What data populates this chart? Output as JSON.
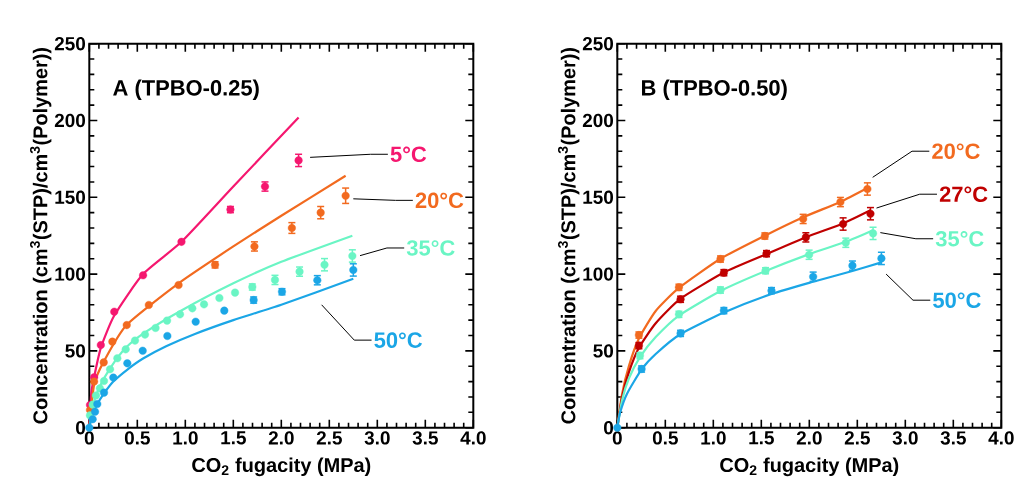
{
  "chart_data": [
    {
      "type": "scatter",
      "xlabel": "CO$_{2}$ fugacity (MPa)",
      "ylabel": "Concentration (cm$^{3}$(STP)/cm$^{3}$(Polymer))",
      "annotations": [
        "A (TPBO-0.25)"
      ],
      "xlim": [
        0,
        4
      ],
      "ylim": [
        0,
        250
      ],
      "xticks": [
        0,
        0.5,
        {
          "value": 1,
          "label": "1.0"
        },
        1.5,
        {
          "value": 2,
          "label": "2.0"
        },
        2.5,
        {
          "value": 3,
          "label": "3.0"
        },
        3.5,
        {
          "value": 4,
          "label": "4.0"
        }
      ],
      "yticks": [
        0,
        50,
        100,
        150,
        200,
        250
      ],
      "series": [
        {
          "name": "5°C",
          "marker": "circle",
          "color": "#f5176f",
          "x": [
            0.007,
            0.05,
            0.12,
            0.26,
            0.56,
            0.96,
            1.47,
            1.83,
            2.18
          ],
          "values": [
            14.8,
            32.8,
            53.8,
            75.5,
            99.2,
            121,
            142,
            157,
            174
          ],
          "errors": [
            null,
            null,
            null,
            null,
            null,
            null,
            2,
            3,
            4
          ]
        },
        {
          "name": "20°C",
          "marker": "circle",
          "color": "#f26a1f",
          "x": [
            0.007,
            0.05,
            0.15,
            0.24,
            0.39,
            0.62,
            0.93,
            1.31,
            1.72,
            2.11,
            2.41,
            2.67
          ],
          "values": [
            11.5,
            30,
            42.5,
            56,
            66.8,
            79.9,
            92.9,
            106,
            118,
            130,
            140,
            151
          ],
          "errors": [
            null,
            null,
            null,
            null,
            null,
            null,
            null,
            2,
            3,
            3.5,
            4,
            5
          ]
        },
        {
          "name": "35°C",
          "marker": "circle",
          "color": "#6af5c4",
          "x": [
            0.007,
            0.035,
            0.07,
            0.11,
            0.153,
            0.216,
            0.292,
            0.379,
            0.476,
            0.58,
            0.69,
            0.81,
            0.945,
            1.073,
            1.195,
            1.355,
            1.518,
            1.698,
            1.934,
            2.19,
            2.45,
            2.74
          ],
          "values": [
            8,
            15,
            21,
            25.6,
            30.4,
            38,
            45.2,
            51,
            56.7,
            60.6,
            64.9,
            69.7,
            73.8,
            77.7,
            80.3,
            84.4,
            87.9,
            91.6,
            96.2,
            101.6,
            106.1,
            111.8
          ],
          "errors": [
            null,
            null,
            null,
            null,
            null,
            null,
            null,
            null,
            null,
            null,
            null,
            null,
            null,
            null,
            null,
            null,
            null,
            2,
            3,
            3,
            4,
            4
          ]
        },
        {
          "name": "50°C",
          "marker": "circle",
          "color": "#1ba6e6",
          "x": [
            0,
            0.035,
            0.06,
            0.083,
            0.153,
            0.25,
            0.396,
            0.556,
            0.813,
            1.108,
            1.406,
            1.712,
            2.007,
            2.375,
            2.75
          ],
          "values": [
            0,
            5.5,
            10.4,
            15.4,
            22.8,
            32.6,
            41.9,
            50.1,
            59.7,
            69,
            76.2,
            83.1,
            88.5,
            96,
            102.7
          ],
          "errors": [
            null,
            null,
            null,
            null,
            null,
            null,
            null,
            null,
            null,
            null,
            null,
            2,
            2,
            3,
            4
          ]
        },
        {
          "type": "line",
          "marker": "none",
          "color": "#f5176f",
          "x": [
            0,
            0.02,
            0.05,
            0.12,
            0.26,
            0.56,
            0.96,
            1.5,
            2.18
          ],
          "values": [
            0,
            22,
            33,
            52,
            73,
            100,
            121,
            157,
            202
          ]
        },
        {
          "type": "line",
          "marker": "none",
          "color": "#f26a1f",
          "x": [
            0,
            0.05,
            0.15,
            0.39,
            0.93,
            1.5,
            2.0,
            2.67
          ],
          "values": [
            0,
            28,
            43,
            67,
            94,
            118,
            138,
            164
          ]
        },
        {
          "type": "line",
          "marker": "none",
          "color": "#6af5c4",
          "x": [
            0,
            0.05,
            0.11,
            0.22,
            0.38,
            0.58,
            0.95,
            1.5,
            2.0,
            2.74
          ],
          "values": [
            0,
            17,
            27,
            39,
            52,
            62,
            76,
            94,
            108,
            125
          ]
        },
        {
          "type": "line",
          "marker": "none",
          "color": "#1ba6e6",
          "x": [
            0,
            0.03,
            0.08,
            0.15,
            0.25,
            0.4,
            0.56,
            0.8,
            1.1,
            1.5,
            2.0,
            2.75
          ],
          "values": [
            0,
            8,
            15,
            22,
            30,
            38,
            45,
            53,
            61,
            70,
            80,
            97
          ]
        }
      ]
    },
    {
      "type": "scatter",
      "xlabel": "CO$_{2}$ fugacity (MPa)",
      "ylabel": "Concentration (cm$^{3}$(STP)/cm$^{3}$(Polymer))",
      "annotations": [
        "B (TPBO-0.50)"
      ],
      "xlim": [
        0,
        4
      ],
      "ylim": [
        0,
        250
      ],
      "xticks": [
        0,
        0.5,
        {
          "value": 1,
          "label": "1.0"
        },
        1.5,
        {
          "value": 2,
          "label": "2.0"
        },
        2.5,
        {
          "value": 3,
          "label": "3.0"
        },
        3.5,
        {
          "value": 4,
          "label": "4.0"
        }
      ],
      "yticks": [
        0,
        50,
        100,
        150,
        200,
        250
      ],
      "series": [
        {
          "name": "20°C",
          "marker": "circle",
          "color": "#f26a1f",
          "x": [
            0.225,
            0.642,
            1.075,
            1.537,
            1.936,
            2.324,
            2.605
          ],
          "values": [
            60.3,
            91.4,
            109.8,
            124.8,
            135.9,
            146.9,
            155.4
          ],
          "errors": [
            2,
            2,
            2,
            2,
            3,
            3,
            4
          ]
        },
        {
          "name": "27°C",
          "marker": "circle",
          "color": "#c00000",
          "x": [
            0.225,
            0.659,
            1.11,
            1.554,
            1.964,
            2.352,
            2.637
          ],
          "values": [
            53.4,
            83.6,
            100.9,
            113.3,
            123.9,
            132.6,
            139.3
          ],
          "errors": [
            2,
            2,
            2,
            2,
            3,
            4,
            4
          ]
        },
        {
          "name": "35°C",
          "marker": "circle",
          "color": "#6af5c4",
          "x": [
            0.236,
            0.642,
            1.075,
            1.544,
            1.998,
            2.38,
            2.664
          ],
          "values": [
            46.9,
            73.8,
            89.6,
            102.2,
            112.6,
            120.4,
            126.5
          ],
          "errors": [
            2,
            2,
            2,
            2,
            3,
            3,
            4
          ]
        },
        {
          "name": "50°C",
          "marker": "circle",
          "color": "#1ba6e6",
          "x": [
            0,
            0.253,
            0.659,
            1.11,
            1.606,
            2.04,
            2.449,
            2.751
          ],
          "values": [
            0,
            38.2,
            61.4,
            76.2,
            89.2,
            98.3,
            105.5,
            110.2
          ],
          "errors": [
            null,
            2,
            2,
            2,
            2,
            3,
            3,
            4
          ]
        },
        {
          "type": "line",
          "marker": "none",
          "color": "#f26a1f",
          "x": [
            0,
            0.05,
            0.12,
            0.225,
            0.4,
            0.642,
            1.075,
            1.537,
            1.936,
            2.324,
            2.605
          ],
          "values": [
            0,
            22,
            40,
            58,
            76,
            91,
            110,
            125,
            137,
            147,
            156
          ]
        },
        {
          "type": "line",
          "marker": "none",
          "color": "#c00000",
          "x": [
            0,
            0.05,
            0.12,
            0.225,
            0.4,
            0.659,
            1.11,
            1.554,
            1.964,
            2.352,
            2.637
          ],
          "values": [
            0,
            20,
            36,
            52,
            68,
            84,
            101,
            113,
            124,
            133,
            141.5
          ]
        },
        {
          "type": "line",
          "marker": "none",
          "color": "#6af5c4",
          "x": [
            0,
            0.05,
            0.12,
            0.236,
            0.4,
            0.642,
            1.075,
            1.544,
            1.998,
            2.38,
            2.664
          ],
          "values": [
            0,
            18,
            32,
            46,
            59,
            73,
            89,
            102,
            113,
            121,
            128.5
          ]
        },
        {
          "type": "line",
          "marker": "none",
          "color": "#1ba6e6",
          "x": [
            0,
            0.03,
            0.1,
            0.253,
            0.4,
            0.659,
            1.11,
            1.606,
            2.04,
            2.449,
            2.751
          ],
          "values": [
            0,
            10,
            22,
            38,
            48,
            61,
            75,
            87,
            95,
            102,
            107.6
          ]
        }
      ]
    }
  ]
}
